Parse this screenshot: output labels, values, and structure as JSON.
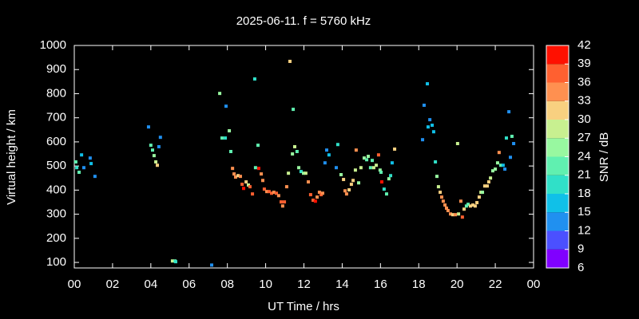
{
  "chart_data": {
    "type": "scatter",
    "title": "2025-06-11. f = 5760 kHz",
    "x_label": "UT Time / hrs",
    "y_label": "Virtual height / km",
    "xlim": [
      0,
      24
    ],
    "xticks": [
      {
        "value": 0,
        "label": "00"
      },
      {
        "value": 2,
        "label": "02"
      },
      {
        "value": 4,
        "label": "04"
      },
      {
        "value": 6,
        "label": "06"
      },
      {
        "value": 8,
        "label": "08"
      },
      {
        "value": 10,
        "label": "10"
      },
      12,
      14,
      16,
      18,
      20,
      22,
      {
        "value": 24,
        "label": "00"
      }
    ],
    "ylim": [
      77,
      1000
    ],
    "yticks": [
      100,
      200,
      300,
      400,
      500,
      600,
      700,
      800,
      900,
      1000
    ],
    "colorbar": {
      "label": "SNR / dB",
      "lim": [
        6,
        42
      ],
      "ticks": [
        6,
        9,
        12,
        15,
        18,
        21,
        24,
        27,
        30,
        33,
        36,
        39,
        42
      ],
      "colors": [
        "#8000ff",
        "#4b50ff",
        "#2090f0",
        "#10c0e8",
        "#30e0c8",
        "#60f0b0",
        "#98f8a0",
        "#c8f090",
        "#f8d080",
        "#ff9050",
        "#ff6030",
        "#ff1000"
      ]
    },
    "x": [
      0.08,
      0.13,
      0.25,
      0.38,
      0.5,
      0.83,
      0.88,
      1.08,
      3.88,
      4.0,
      4.09,
      4.17,
      4.26,
      4.34,
      4.42,
      4.5,
      5.13,
      5.26,
      5.3,
      7.18,
      7.6,
      7.72,
      7.89,
      7.93,
      8.1,
      8.18,
      8.27,
      8.35,
      8.43,
      8.56,
      8.68,
      8.77,
      8.85,
      8.98,
      9.1,
      9.18,
      9.31,
      9.43,
      9.47,
      9.6,
      9.64,
      9.77,
      9.85,
      9.93,
      10.06,
      10.18,
      10.31,
      10.43,
      10.56,
      10.68,
      10.81,
      10.89,
      10.98,
      11.1,
      11.19,
      11.27,
      11.4,
      11.44,
      11.52,
      11.64,
      11.73,
      11.85,
      11.98,
      12.1,
      12.23,
      12.35,
      12.48,
      12.6,
      12.69,
      12.81,
      12.9,
      12.98,
      13.1,
      13.19,
      13.31,
      13.69,
      13.77,
      13.94,
      14.07,
      14.15,
      14.23,
      14.36,
      14.48,
      14.57,
      14.69,
      14.73,
      14.86,
      14.98,
      15.15,
      15.28,
      15.36,
      15.48,
      15.57,
      15.65,
      15.78,
      15.9,
      15.98,
      16.03,
      16.07,
      16.19,
      16.32,
      16.44,
      16.53,
      16.61,
      16.74,
      18.2,
      18.28,
      18.45,
      18.49,
      18.58,
      18.7,
      18.78,
      18.87,
      18.95,
      19.03,
      19.12,
      19.2,
      19.28,
      19.37,
      19.45,
      19.53,
      19.66,
      19.78,
      19.91,
      20.03,
      20.08,
      20.2,
      20.28,
      20.37,
      20.49,
      20.58,
      20.7,
      20.83,
      20.95,
      21.04,
      21.16,
      21.25,
      21.33,
      21.45,
      21.58,
      21.66,
      21.75,
      21.87,
      22.0,
      22.12,
      22.2,
      22.29,
      22.41,
      22.5,
      22.58,
      22.71,
      22.79,
      22.87,
      22.96
    ],
    "values": [
      517,
      493,
      474,
      546,
      493,
      533,
      510,
      457,
      662,
      586,
      566,
      543,
      517,
      503,
      580,
      619,
      106,
      106,
      103,
      89,
      801,
      616,
      616,
      748,
      646,
      560,
      490,
      467,
      454,
      460,
      457,
      424,
      407,
      434,
      421,
      414,
      384,
      861,
      493,
      586,
      490,
      467,
      440,
      404,
      394,
      394,
      387,
      391,
      387,
      377,
      351,
      334,
      351,
      414,
      470,
      934,
      550,
      735,
      580,
      560,
      493,
      477,
      470,
      470,
      434,
      381,
      358,
      354,
      371,
      391,
      381,
      387,
      513,
      566,
      546,
      493,
      589,
      464,
      444,
      397,
      384,
      401,
      424,
      440,
      483,
      566,
      430,
      493,
      533,
      526,
      540,
      493,
      523,
      493,
      503,
      546,
      483,
      474,
      434,
      404,
      384,
      447,
      460,
      513,
      570,
      609,
      752,
      841,
      662,
      692,
      669,
      642,
      517,
      457,
      414,
      391,
      371,
      354,
      338,
      325,
      315,
      301,
      298,
      298,
      593,
      301,
      354,
      288,
      321,
      334,
      341,
      334,
      338,
      334,
      348,
      371,
      391,
      391,
      417,
      417,
      434,
      450,
      480,
      487,
      513,
      556,
      503,
      503,
      487,
      616,
      725,
      536,
      623,
      593
    ],
    "snr": [
      21,
      18,
      21,
      15,
      12,
      12,
      15,
      12,
      12,
      21,
      21,
      24,
      27,
      30,
      12,
      12,
      27,
      21,
      18,
      12,
      24,
      21,
      18,
      12,
      24,
      21,
      33,
      33,
      33,
      30,
      33,
      36,
      39,
      30,
      27,
      36,
      36,
      18,
      21,
      21,
      39,
      33,
      33,
      36,
      33,
      36,
      36,
      33,
      36,
      33,
      36,
      33,
      36,
      33,
      27,
      30,
      24,
      21,
      27,
      21,
      24,
      18,
      24,
      27,
      33,
      36,
      36,
      39,
      33,
      33,
      36,
      33,
      12,
      12,
      15,
      12,
      18,
      24,
      30,
      33,
      33,
      30,
      30,
      30,
      27,
      33,
      24,
      27,
      24,
      21,
      24,
      21,
      21,
      27,
      27,
      36,
      24,
      21,
      39,
      18,
      21,
      24,
      18,
      15,
      30,
      12,
      12,
      15,
      15,
      12,
      15,
      15,
      18,
      24,
      27,
      30,
      33,
      33,
      33,
      33,
      33,
      33,
      30,
      33,
      27,
      27,
      33,
      36,
      30,
      21,
      21,
      30,
      30,
      30,
      30,
      30,
      27,
      24,
      30,
      30,
      30,
      27,
      24,
      24,
      24,
      33,
      21,
      15,
      12,
      18,
      12,
      12,
      21,
      12
    ]
  }
}
